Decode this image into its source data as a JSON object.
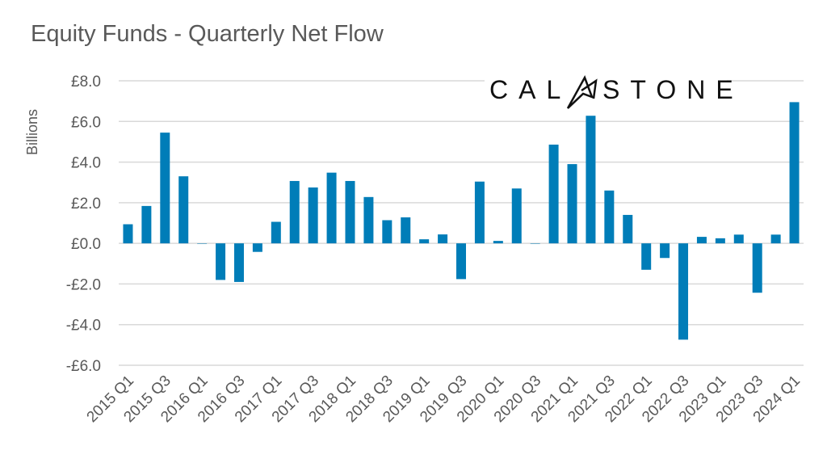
{
  "chart_data": {
    "type": "bar",
    "title": "Equity Funds - Quarterly Net Flow",
    "xlabel": "",
    "ylabel": "Billions",
    "ylim": [
      -6,
      8
    ],
    "yticks": [
      -6,
      -4,
      -2,
      0,
      2,
      4,
      6,
      8
    ],
    "ytick_labels": [
      "-£6.0",
      "-£4.0",
      "-£2.0",
      "£0.0",
      "£2.0",
      "£4.0",
      "£6.0",
      "£8.0"
    ],
    "grid": true,
    "legend": "none",
    "bar_color": "#007DB8",
    "categories": [
      "2015 Q1",
      "2015 Q2",
      "2015 Q3",
      "2015 Q4",
      "2016 Q1",
      "2016 Q2",
      "2016 Q3",
      "2016 Q4",
      "2017 Q1",
      "2017 Q2",
      "2017 Q3",
      "2017 Q4",
      "2018 Q1",
      "2018 Q2",
      "2018 Q3",
      "2018 Q4",
      "2019 Q1",
      "2019 Q2",
      "2019 Q3",
      "2019 Q4",
      "2020 Q1",
      "2020 Q2",
      "2020 Q3",
      "2020 Q4",
      "2021 Q1",
      "2021 Q2",
      "2021 Q3",
      "2021 Q4",
      "2022 Q1",
      "2022 Q2",
      "2022 Q3",
      "2022 Q4",
      "2023 Q1",
      "2023 Q2",
      "2023 Q3",
      "2023 Q4",
      "2024 Q1"
    ],
    "shown_category_labels": [
      "2015 Q1",
      "2015 Q3",
      "2016 Q1",
      "2016 Q3",
      "2017 Q1",
      "2017 Q3",
      "2018 Q1",
      "2018 Q3",
      "2019 Q1",
      "2019 Q3",
      "2020 Q1",
      "2020 Q3",
      "2021 Q1",
      "2021 Q3",
      "2022 Q1",
      "2022 Q3",
      "2023 Q1",
      "2023 Q3",
      "2024 Q1"
    ],
    "values": [
      0.94,
      1.84,
      5.45,
      3.3,
      -0.02,
      -1.8,
      -1.9,
      -0.42,
      1.06,
      3.07,
      2.75,
      3.48,
      3.07,
      2.28,
      1.14,
      1.28,
      0.2,
      0.44,
      -1.76,
      3.04,
      0.12,
      2.7,
      0,
      4.86,
      3.9,
      6.28,
      2.6,
      1.4,
      -1.3,
      -0.72,
      -4.74,
      0.32,
      0.25,
      0.43,
      -2.43,
      0.43,
      6.95
    ]
  },
  "logo": {
    "text": "CALASTONE"
  }
}
